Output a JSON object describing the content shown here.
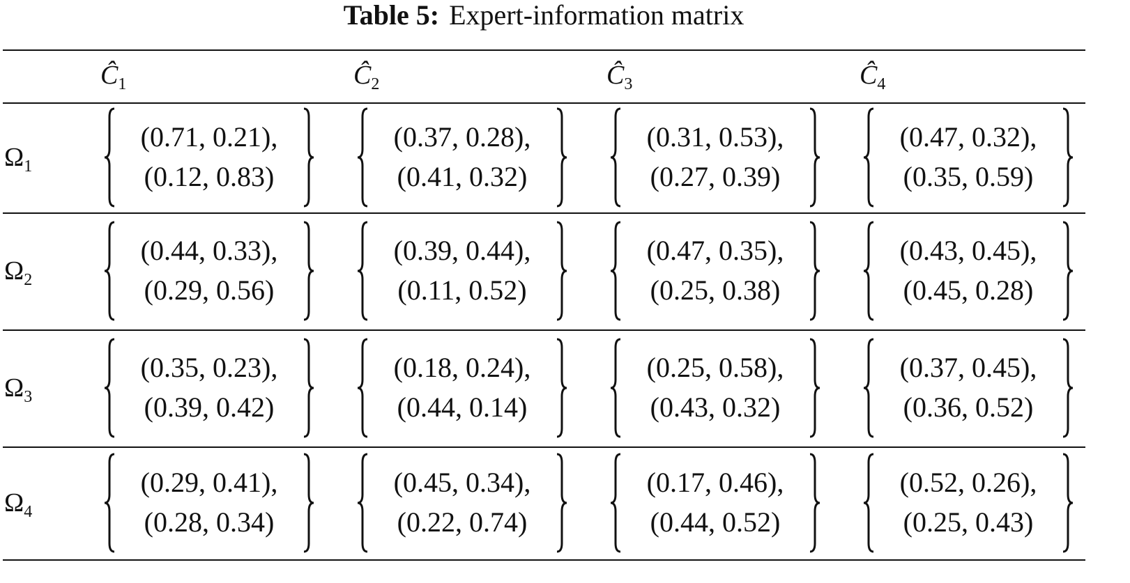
{
  "caption": {
    "label": "Table 5:",
    "title": "Expert-information matrix"
  },
  "table": {
    "header": [
      {
        "symbol": "Ĉ",
        "sub": "1"
      },
      {
        "symbol": "Ĉ",
        "sub": "2"
      },
      {
        "symbol": "Ĉ",
        "sub": "3"
      },
      {
        "symbol": "Ĉ",
        "sub": "4"
      }
    ],
    "rows": [
      {
        "label": {
          "symbol": "Ω",
          "sub": "1"
        },
        "cells": [
          [
            "(0.71, 0.21),",
            "(0.12, 0.83)"
          ],
          [
            "(0.37, 0.28),",
            "(0.41, 0.32)"
          ],
          [
            "(0.31, 0.53),",
            "(0.27, 0.39)"
          ],
          [
            "(0.47, 0.32),",
            "(0.35, 0.59)"
          ]
        ]
      },
      {
        "label": {
          "symbol": "Ω",
          "sub": "2"
        },
        "cells": [
          [
            "(0.44, 0.33),",
            "(0.29, 0.56)"
          ],
          [
            "(0.39, 0.44),",
            "(0.11, 0.52)"
          ],
          [
            "(0.47, 0.35),",
            "(0.25, 0.38)"
          ],
          [
            "(0.43, 0.45),",
            "(0.45, 0.28)"
          ]
        ]
      },
      {
        "label": {
          "symbol": "Ω",
          "sub": "3"
        },
        "cells": [
          [
            "(0.35, 0.23),",
            "(0.39, 0.42)"
          ],
          [
            "(0.18, 0.24),",
            "(0.44, 0.14)"
          ],
          [
            "(0.25, 0.58),",
            "(0.43, 0.32)"
          ],
          [
            "(0.37, 0.45),",
            "(0.36, 0.52)"
          ]
        ]
      },
      {
        "label": {
          "symbol": "Ω",
          "sub": "4"
        },
        "cells": [
          [
            "(0.29, 0.41),",
            "(0.28, 0.34)"
          ],
          [
            "(0.45, 0.34),",
            "(0.22, 0.74)"
          ],
          [
            "(0.17, 0.46),",
            "(0.44, 0.52)"
          ],
          [
            "(0.52, 0.26),",
            "(0.25, 0.43)"
          ]
        ]
      }
    ]
  }
}
